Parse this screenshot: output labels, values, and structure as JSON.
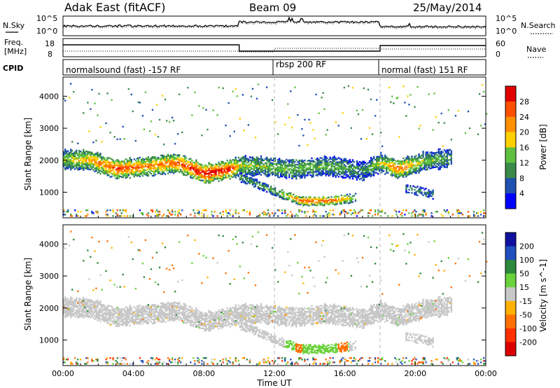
{
  "header": {
    "station": "Adak East (fitACF)",
    "beam": "Beam 09",
    "date": "25/May/2014"
  },
  "summary_panels": {
    "nsky_label": "N.Sky",
    "nsearch_label": "N.Search",
    "noise_ticks": [
      "10^5",
      "10^0"
    ],
    "freq_label_line1": "Freq.",
    "freq_label_line2": "[MHz]",
    "freq_ticks": [
      "18",
      "8"
    ],
    "nave_label": "Nave",
    "nave_ticks": [
      "60",
      "0"
    ],
    "cpid_label": "CPID"
  },
  "cpid_segments": [
    {
      "label": "normalsound (fast) -157 RF",
      "start_hour": 0,
      "end_hour": 12
    },
    {
      "label": "rbsp 200 RF",
      "start_hour": 12,
      "end_hour": 18
    },
    {
      "label": "normal (fast) 151 RF",
      "start_hour": 18,
      "end_hour": 24
    }
  ],
  "colors": {
    "power_scale": [
      "#0000ff",
      "#2050b0",
      "#3a8a4a",
      "#5fc040",
      "#ffd000",
      "#ff9000",
      "#ff5000",
      "#e00000"
    ],
    "velocity_scale": [
      "#1010a0",
      "#2050c0",
      "#2a8a3a",
      "#6ad23a",
      "#c8c8c8",
      "#ffb000",
      "#ff7000",
      "#ff3000",
      "#dd0000"
    ]
  },
  "chart_data": [
    {
      "type": "heatmap",
      "quantity": "power",
      "xlabel": "",
      "ylabel": "Slant Range [km]",
      "xlim": [
        0,
        24
      ],
      "ylim": [
        200,
        4600
      ],
      "yticks": [
        "1000",
        "2000",
        "3000",
        "4000"
      ],
      "colorbar_label": "Power [dB]",
      "colorbar_ticks": [
        "4",
        "8",
        "12",
        "16",
        "20",
        "24",
        "28"
      ],
      "clim": [
        0,
        30
      ],
      "echo_bands": [
        {
          "name": "main",
          "points": [
            [
              0,
              2000,
              14
            ],
            [
              1.5,
              1980,
              20
            ],
            [
              3,
              1700,
              26
            ],
            [
              5,
              1800,
              22
            ],
            [
              6.5,
              1900,
              24
            ],
            [
              8,
              1550,
              30
            ],
            [
              9.5,
              1700,
              28
            ],
            [
              10,
              1800,
              16
            ],
            [
              11,
              1800,
              14
            ],
            [
              13,
              1700,
              14
            ],
            [
              15,
              1800,
              12
            ],
            [
              17,
              1650,
              10
            ],
            [
              18,
              1900,
              16
            ],
            [
              19,
              1700,
              24
            ],
            [
              20.5,
              1950,
              14
            ],
            [
              22,
              2050,
              10
            ]
          ]
        },
        {
          "name": "lower",
          "points": [
            [
              10,
              1450,
              10
            ],
            [
              12,
              1000,
              12
            ],
            [
              13.5,
              700,
              24
            ],
            [
              15,
              700,
              26
            ],
            [
              16.5,
              800,
              14
            ],
            [
              19.5,
              1100,
              10
            ],
            [
              21,
              900,
              8
            ]
          ]
        }
      ]
    },
    {
      "type": "heatmap",
      "quantity": "velocity",
      "xlabel": "Time UT",
      "ylabel": "Slant Range [km]",
      "xlim": [
        0,
        24
      ],
      "ylim": [
        200,
        4600
      ],
      "xticks": [
        "00:00",
        "04:00",
        "08:00",
        "12:00",
        "16:00",
        "20:00",
        "00:00"
      ],
      "yticks": [
        "1000",
        "2000",
        "3000",
        "4000"
      ],
      "colorbar_label": "Velocity [m s^-1]",
      "colorbar_ticks": [
        "200",
        "100",
        "50",
        "15",
        "-15",
        "-50",
        "-100",
        "-200"
      ],
      "clim": [
        -250,
        250
      ],
      "echo_bands": [
        {
          "name": "main",
          "velocity": 0
        },
        {
          "name": "lower",
          "segments": [
            [
              12,
              16.2,
              40
            ],
            [
              13.2,
              13.6,
              -60
            ],
            [
              15.6,
              16.1,
              -60
            ]
          ]
        }
      ]
    }
  ]
}
